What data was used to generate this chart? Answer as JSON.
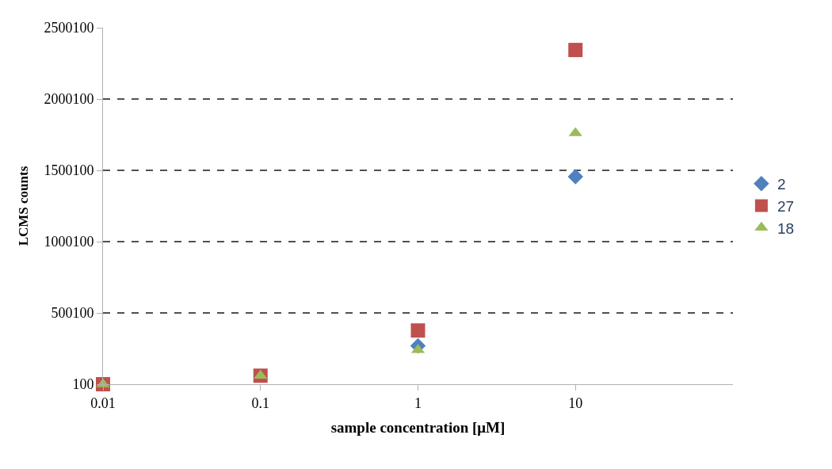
{
  "chart_data": {
    "type": "scatter",
    "xlabel": "sample concentration [μM]",
    "ylabel": "LCMS counts",
    "x": [
      0.01,
      0.1,
      1,
      10
    ],
    "series": [
      {
        "name": "2",
        "color": "#4f81bd",
        "marker": "diamond",
        "values": [
          null,
          null,
          270000,
          1455000
        ]
      },
      {
        "name": "27",
        "color": "#c0504d",
        "marker": "square",
        "values": [
          100,
          60000,
          377000,
          2344000
        ]
      },
      {
        "name": "18",
        "color": "#9bbb59",
        "marker": "triangle",
        "values": [
          100,
          60000,
          240000,
          1761000
        ]
      }
    ],
    "log": "x",
    "xlim": [
      0.01,
      100
    ],
    "xticks": [
      0.01,
      0.1,
      1,
      10
    ],
    "ylim": [
      100,
      2500100
    ],
    "yticks": [
      100,
      500100,
      1000100,
      1500100,
      2000100,
      2500100
    ],
    "grid": "y",
    "legend": "right"
  }
}
